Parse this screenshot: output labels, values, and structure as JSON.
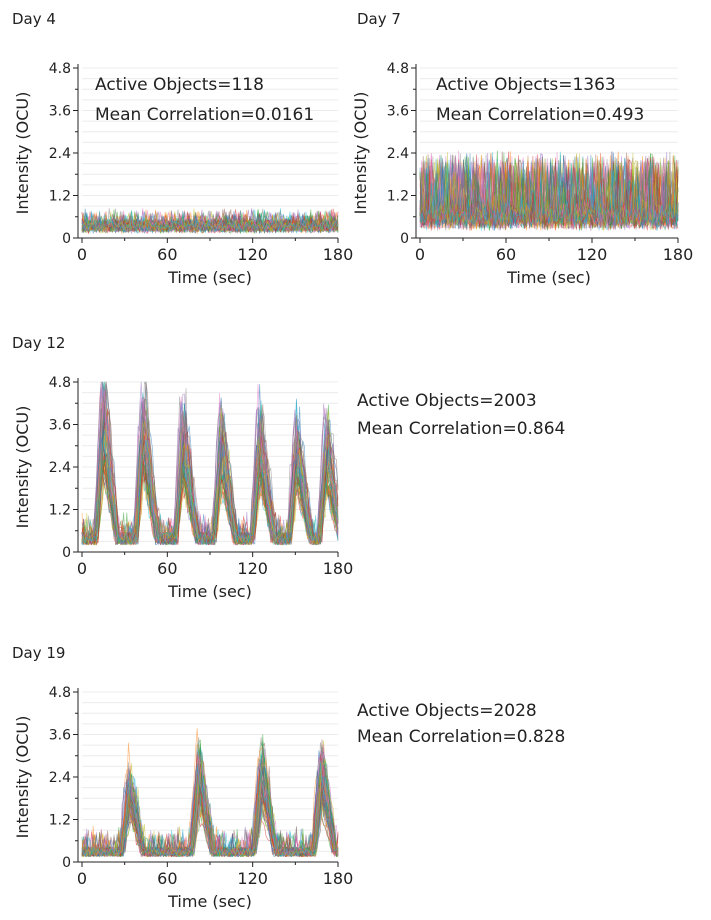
{
  "chart_data": [
    {
      "type": "line",
      "title": "Day 4",
      "xlabel": "Time (sec)",
      "ylabel": "Intensity (OCU)",
      "xlim": [
        0,
        180
      ],
      "ylim": [
        0,
        4.8
      ],
      "xticks": [
        "0",
        "60",
        "120",
        "180"
      ],
      "yticks": [
        "0",
        "1.2",
        "2.4",
        "3.6",
        "4.8"
      ],
      "annotations": [
        "Active Objects=118",
        "Mean Correlation=0.0161"
      ],
      "pattern": "noise",
      "envelope_peak": 0.9,
      "baseline": 0.25,
      "grid": true
    },
    {
      "type": "line",
      "title": "Day 7",
      "xlabel": "Time (sec)",
      "ylabel": "Intensity (OCU)",
      "xlim": [
        0,
        180
      ],
      "ylim": [
        0,
        4.8
      ],
      "xticks": [
        "0",
        "60",
        "120",
        "180"
      ],
      "yticks": [
        "0",
        "1.2",
        "2.4",
        "3.6",
        "4.8"
      ],
      "annotations": [
        "Active Objects=1363",
        "Mean Correlation=0.493"
      ],
      "pattern": "dense-noise",
      "envelope_peak": 2.4,
      "baseline": 0.4,
      "grid": true
    },
    {
      "type": "line",
      "title": "Day 12",
      "xlabel": "Time (sec)",
      "ylabel": "Intensity (OCU)",
      "xlim": [
        0,
        180
      ],
      "ylim": [
        0,
        4.8
      ],
      "xticks": [
        "0",
        "60",
        "120",
        "180"
      ],
      "yticks": [
        "0",
        "1.2",
        "2.4",
        "3.6",
        "4.8"
      ],
      "annotations": [
        "Active Objects=2003",
        "Mean Correlation=0.864"
      ],
      "pattern": "bursts",
      "burst_times": [
        15,
        43,
        71,
        98,
        125,
        151,
        172
      ],
      "burst_peaks": [
        4.7,
        4.5,
        4.0,
        3.8,
        3.9,
        3.6,
        3.6
      ],
      "baseline": 0.4,
      "grid": true
    },
    {
      "type": "line",
      "title": "Day 19",
      "xlabel": "Time (sec)",
      "ylabel": "Intensity (OCU)",
      "xlim": [
        0,
        180
      ],
      "ylim": [
        0,
        4.8
      ],
      "xticks": [
        "0",
        "60",
        "120",
        "180"
      ],
      "yticks": [
        "0",
        "1.2",
        "2.4",
        "3.6",
        "4.8"
      ],
      "annotations": [
        "Active Objects=2028",
        "Mean Correlation=0.828"
      ],
      "pattern": "bursts",
      "burst_times": [
        33,
        82,
        126,
        168
      ],
      "burst_peaks": [
        2.4,
        3.0,
        3.1,
        3.1
      ],
      "baseline": 0.3,
      "grid": true
    }
  ],
  "colors": [
    "#1f77b4",
    "#ff7f0e",
    "#2ca02c",
    "#d62728",
    "#9467bd",
    "#8c564b",
    "#e377c2",
    "#7f7f7f",
    "#bcbd22",
    "#17becf"
  ]
}
